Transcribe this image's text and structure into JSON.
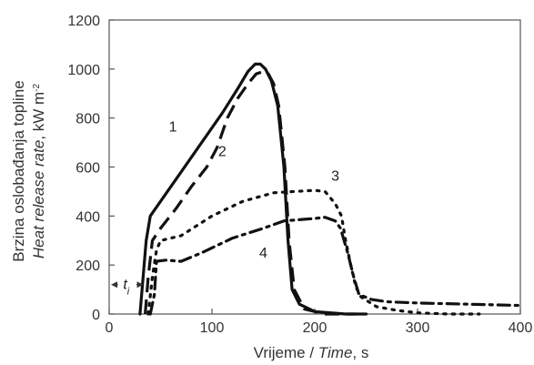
{
  "chart_data": {
    "type": "line",
    "xlabel": {
      "main": "Vrijeme / ",
      "italic": "Time",
      "suffix": ", s"
    },
    "ylabel": {
      "line1": "Brzina oslobađanja topline",
      "line2_italic": "Heat release rate",
      "line2_unit": ", kW m",
      "line2_sup": "-2"
    },
    "xlim": [
      0,
      400
    ],
    "ylim": [
      0,
      1200
    ],
    "xticks": [
      0,
      100,
      200,
      300,
      400
    ],
    "yticks": [
      0,
      200,
      400,
      600,
      800,
      1000,
      1200
    ],
    "grid": false,
    "annotation": {
      "text": "t",
      "subscript": "i",
      "x_start": 0,
      "x_end": 35,
      "y": 120
    },
    "series": [
      {
        "label": "1",
        "style": "solid",
        "color": "#111111",
        "label_at": [
          62,
          745
        ],
        "points": [
          [
            30,
            0
          ],
          [
            33,
            150
          ],
          [
            36,
            300
          ],
          [
            40,
            400
          ],
          [
            50,
            460
          ],
          [
            70,
            580
          ],
          [
            90,
            700
          ],
          [
            110,
            820
          ],
          [
            125,
            920
          ],
          [
            135,
            990
          ],
          [
            142,
            1020
          ],
          [
            147,
            1020
          ],
          [
            152,
            1000
          ],
          [
            158,
            950
          ],
          [
            164,
            850
          ],
          [
            170,
            600
          ],
          [
            174,
            300
          ],
          [
            178,
            100
          ],
          [
            185,
            40
          ],
          [
            200,
            10
          ],
          [
            230,
            0
          ],
          [
            250,
            0
          ]
        ]
      },
      {
        "label": "2",
        "style": "dashed",
        "color": "#111111",
        "label_at": [
          110,
          645
        ],
        "points": [
          [
            35,
            0
          ],
          [
            38,
            150
          ],
          [
            42,
            300
          ],
          [
            50,
            350
          ],
          [
            65,
            430
          ],
          [
            80,
            520
          ],
          [
            95,
            600
          ],
          [
            105,
            680
          ],
          [
            115,
            800
          ],
          [
            125,
            880
          ],
          [
            135,
            940
          ],
          [
            143,
            980
          ],
          [
            150,
            990
          ],
          [
            155,
            980
          ],
          [
            160,
            940
          ],
          [
            165,
            850
          ],
          [
            171,
            600
          ],
          [
            175,
            300
          ],
          [
            180,
            100
          ],
          [
            190,
            20
          ],
          [
            210,
            0
          ],
          [
            240,
            0
          ]
        ]
      },
      {
        "label": "3",
        "style": "dotted",
        "color": "#111111",
        "label_at": [
          220,
          545
        ],
        "points": [
          [
            38,
            0
          ],
          [
            42,
            150
          ],
          [
            46,
            260
          ],
          [
            50,
            300
          ],
          [
            70,
            320
          ],
          [
            100,
            400
          ],
          [
            130,
            460
          ],
          [
            160,
            495
          ],
          [
            180,
            500
          ],
          [
            200,
            505
          ],
          [
            210,
            500
          ],
          [
            220,
            450
          ],
          [
            226,
            400
          ],
          [
            230,
            300
          ],
          [
            235,
            200
          ],
          [
            240,
            110
          ],
          [
            245,
            70
          ],
          [
            260,
            30
          ],
          [
            280,
            15
          ],
          [
            300,
            5
          ],
          [
            330,
            0
          ],
          [
            360,
            0
          ]
        ]
      },
      {
        "label": "4",
        "style": "dashdot",
        "color": "#111111",
        "label_at": [
          150,
          230
        ],
        "points": [
          [
            40,
            0
          ],
          [
            44,
            80
          ],
          [
            46,
            215
          ],
          [
            55,
            220
          ],
          [
            70,
            215
          ],
          [
            90,
            250
          ],
          [
            120,
            310
          ],
          [
            150,
            350
          ],
          [
            170,
            380
          ],
          [
            200,
            390
          ],
          [
            210,
            395
          ],
          [
            220,
            380
          ],
          [
            225,
            350
          ],
          [
            232,
            250
          ],
          [
            238,
            150
          ],
          [
            243,
            80
          ],
          [
            255,
            60
          ],
          [
            270,
            50
          ],
          [
            300,
            45
          ],
          [
            350,
            40
          ],
          [
            400,
            35
          ]
        ]
      }
    ]
  }
}
